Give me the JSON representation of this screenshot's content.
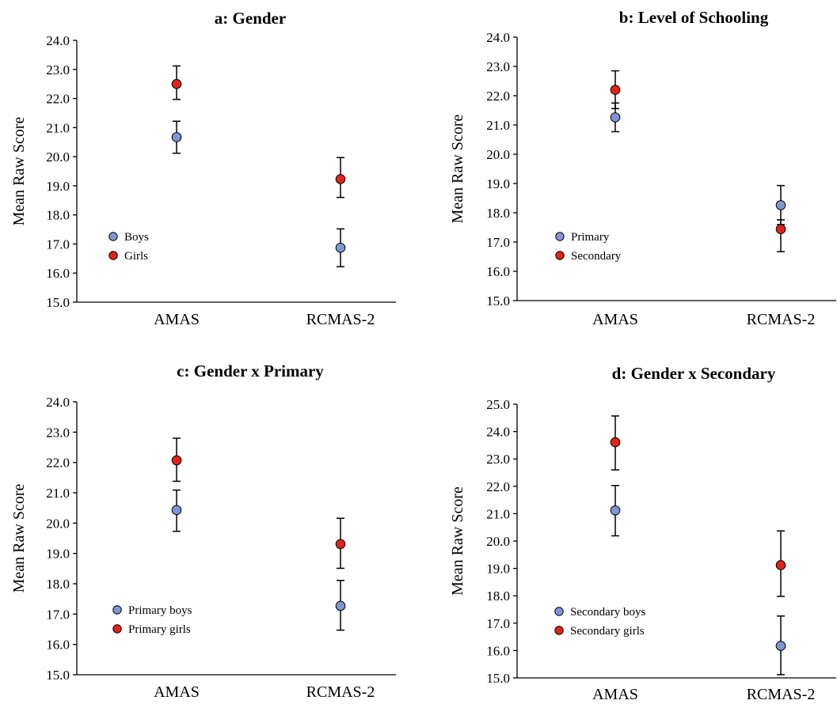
{
  "chart_data": [
    {
      "type": "scatter",
      "title": "a:  Gender",
      "ylabel": "Mean Raw Score",
      "categories": [
        "AMAS",
        "RCMAS-2"
      ],
      "ylim": [
        15.0,
        24.0
      ],
      "yticks": [
        "15.0",
        "16.0",
        "17.0",
        "18.0",
        "19.0",
        "20.0",
        "21.0",
        "22.0",
        "23.0",
        "24.0"
      ],
      "legend_position": "bottom-left",
      "series": [
        {
          "name": "Boys",
          "color": "#7f96d6",
          "values": [
            20.67,
            16.87
          ],
          "err_low": [
            20.12,
            16.22
          ],
          "err_high": [
            21.22,
            17.52
          ]
        },
        {
          "name": "Girls",
          "color": "#e2231a",
          "values": [
            22.5,
            19.23
          ],
          "err_low": [
            21.97,
            18.6
          ],
          "err_high": [
            23.12,
            19.97
          ]
        }
      ]
    },
    {
      "type": "scatter",
      "title": "b: Level of Schooling",
      "ylabel": "Mean Raw Score",
      "categories": [
        "AMAS",
        "RCMAS-2"
      ],
      "ylim": [
        15.0,
        24.0
      ],
      "yticks": [
        "15.0",
        "16.0",
        "17.0",
        "18.0",
        "19.0",
        "20.0",
        "21.0",
        "22.0",
        "23.0",
        "24.0"
      ],
      "legend_position": "bottom-left",
      "series": [
        {
          "name": "Primary",
          "color": "#7f96d6",
          "values": [
            21.26,
            18.26
          ],
          "err_low": [
            20.77,
            17.6
          ],
          "err_high": [
            21.75,
            18.93
          ]
        },
        {
          "name": "Secondary",
          "color": "#e2231a",
          "values": [
            22.2,
            17.44
          ],
          "err_low": [
            21.56,
            16.67
          ],
          "err_high": [
            22.85,
            17.76
          ]
        }
      ]
    },
    {
      "type": "scatter",
      "title": "c: Gender x Primary",
      "ylabel": "Mean Raw Score",
      "categories": [
        "AMAS",
        "RCMAS-2"
      ],
      "ylim": [
        15.0,
        24.0
      ],
      "yticks": [
        "15.0",
        "16.0",
        "17.0",
        "18.0",
        "19.0",
        "20.0",
        "21.0",
        "22.0",
        "23.0",
        "24.0"
      ],
      "legend_position": "bottom-left",
      "series": [
        {
          "name": "Primary boys",
          "color": "#7f96d6",
          "values": [
            20.43,
            17.27
          ],
          "err_low": [
            19.73,
            16.47
          ],
          "err_high": [
            21.09,
            18.11
          ]
        },
        {
          "name": "Primary girls",
          "color": "#e2231a",
          "values": [
            22.07,
            19.31
          ],
          "err_low": [
            21.38,
            18.51
          ],
          "err_high": [
            22.8,
            20.16
          ]
        }
      ]
    },
    {
      "type": "scatter",
      "title": "d: Gender x Secondary",
      "ylabel": "Mean Raw Score",
      "categories": [
        "AMAS",
        "RCMAS-2"
      ],
      "ylim": [
        15.0,
        25.0
      ],
      "yticks": [
        "15.0",
        "16.0",
        "17.0",
        "18.0",
        "19.0",
        "20.0",
        "21.0",
        "22.0",
        "23.0",
        "24.0",
        "25.0"
      ],
      "legend_position": "bottom-left",
      "series": [
        {
          "name": "Secondary boys",
          "color": "#7f96d6",
          "values": [
            21.12,
            16.17
          ],
          "err_low": [
            20.19,
            15.12
          ],
          "err_high": [
            22.03,
            17.26
          ]
        },
        {
          "name": "Secondary girls",
          "color": "#e2231a",
          "values": [
            23.61,
            19.12
          ],
          "err_low": [
            22.6,
            17.98
          ],
          "err_high": [
            24.57,
            20.37
          ]
        }
      ]
    }
  ]
}
